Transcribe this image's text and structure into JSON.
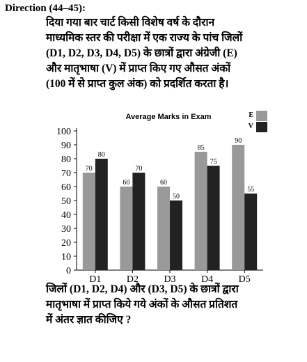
{
  "direction": "Direction (44–45):",
  "intro_lines": [
    "दिया गया बार चार्ट किसी विशेष वर्ष के दौरान",
    "माध्यमिक स्तर की परीक्षा में एक राज्य के पांच जिलों",
    "(D1, D2, D3, D4, D5) के छात्रों द्वारा अंग्रेजी (E)",
    "और मातृभाषा (V)  में प्राप्त किए गए औसत अंकों",
    "(100 में से प्राप्त कुल अंक) को प्रदर्शित करता है।"
  ],
  "question_lines": [
    "जिलों (D1, D2, D4) और (D3, D5) के छात्रों द्वारा",
    "मातृभाषा में प्राप्त किये गये अंकों के औसत प्रतिशत",
    "में अंतर ज्ञात कीजिए ?"
  ],
  "colors": {
    "E": "#999999",
    "V": "#222222"
  },
  "chart_data": {
    "type": "bar",
    "title": "Average Marks in Exam",
    "categories": [
      "D1",
      "D2",
      "D3",
      "D4",
      "D5"
    ],
    "series": [
      {
        "name": "E",
        "values": [
          70,
          60,
          60,
          85,
          90
        ]
      },
      {
        "name": "V",
        "values": [
          80,
          70,
          50,
          75,
          55
        ]
      }
    ],
    "ylim": [
      0,
      100
    ],
    "yticks": [
      0,
      10,
      20,
      30,
      40,
      50,
      60,
      70,
      80,
      90,
      100
    ],
    "legend": "top-right",
    "grid": false,
    "xlabel": "",
    "ylabel": ""
  }
}
